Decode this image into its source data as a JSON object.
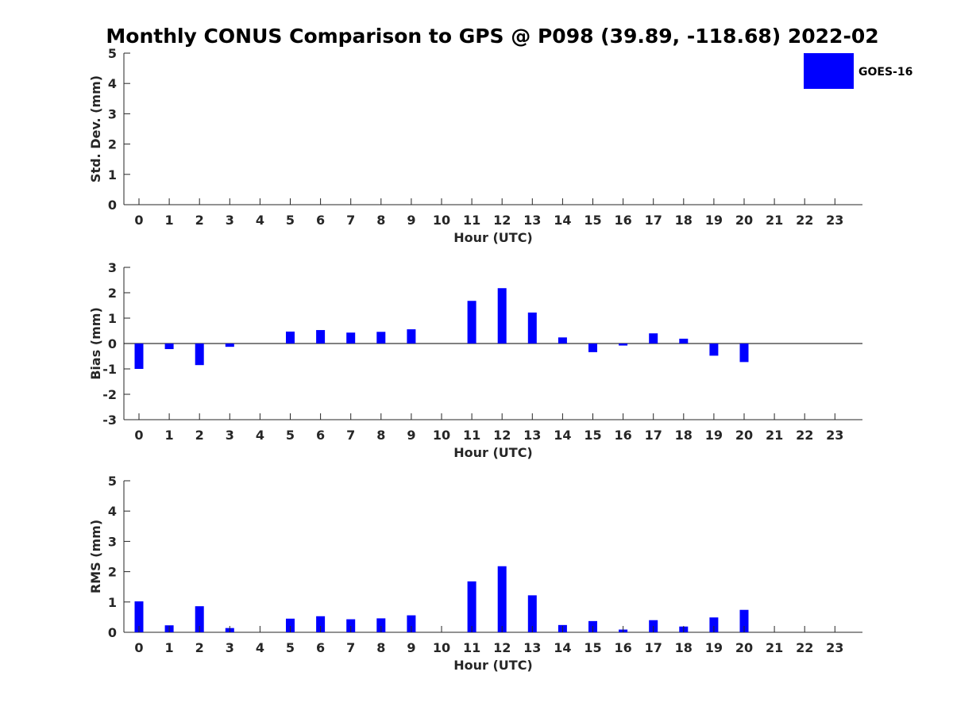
{
  "title": "Monthly CONUS Comparison to GPS @ P098 (39.89, -118.68) 2022-02",
  "colors": {
    "bar": "#0000ff",
    "axis": "#262626",
    "background": "#ffffff"
  },
  "legend": {
    "label": "GOES-16",
    "placement": "top-right"
  },
  "chart_data": [
    {
      "type": "bar",
      "name": "std",
      "categories": [
        "0",
        "1",
        "2",
        "3",
        "4",
        "5",
        "6",
        "7",
        "8",
        "9",
        "10",
        "11",
        "12",
        "13",
        "14",
        "15",
        "16",
        "17",
        "18",
        "19",
        "20",
        "21",
        "22",
        "23"
      ],
      "series": [
        {
          "name": "GOES-16",
          "values": [
            0,
            0,
            0,
            0,
            0,
            0,
            0,
            0,
            0,
            0,
            0,
            0,
            0,
            0,
            0,
            0,
            0,
            0,
            0,
            0,
            0,
            0,
            0,
            0
          ]
        }
      ],
      "xlabel": "Hour (UTC)",
      "ylabel": "Std. Dev. (mm)",
      "ylim": [
        0,
        5
      ],
      "yticks": [
        "0",
        "1",
        "2",
        "3",
        "4",
        "5"
      ],
      "zero_line": false
    },
    {
      "type": "bar",
      "name": "bias",
      "categories": [
        "0",
        "1",
        "2",
        "3",
        "4",
        "5",
        "6",
        "7",
        "8",
        "9",
        "10",
        "11",
        "12",
        "13",
        "14",
        "15",
        "16",
        "17",
        "18",
        "19",
        "20",
        "21",
        "22",
        "23"
      ],
      "series": [
        {
          "name": "GOES-16",
          "values": [
            -1.0,
            -0.22,
            -0.85,
            -0.13,
            0,
            0.47,
            0.53,
            0.43,
            0.46,
            0.56,
            0,
            1.68,
            2.18,
            1.22,
            0.24,
            -0.34,
            -0.08,
            0.4,
            0.19,
            -0.48,
            -0.73,
            0,
            0,
            0
          ]
        }
      ],
      "xlabel": "Hour (UTC)",
      "ylabel": "Bias (mm)",
      "ylim": [
        -3,
        3
      ],
      "yticks": [
        "-3",
        "-2",
        "-1",
        "0",
        "1",
        "2",
        "3"
      ],
      "zero_line": true
    },
    {
      "type": "bar",
      "name": "rms",
      "categories": [
        "0",
        "1",
        "2",
        "3",
        "4",
        "5",
        "6",
        "7",
        "8",
        "9",
        "10",
        "11",
        "12",
        "13",
        "14",
        "15",
        "16",
        "17",
        "18",
        "19",
        "20",
        "21",
        "22",
        "23"
      ],
      "series": [
        {
          "name": "GOES-16",
          "values": [
            1.02,
            0.23,
            0.86,
            0.14,
            0,
            0.45,
            0.53,
            0.43,
            0.46,
            0.56,
            0,
            1.68,
            2.18,
            1.22,
            0.24,
            0.37,
            0.09,
            0.4,
            0.19,
            0.49,
            0.74,
            0,
            0,
            0
          ]
        }
      ],
      "xlabel": "Hour (UTC)",
      "ylabel": "RMS (mm)",
      "ylim": [
        0,
        5
      ],
      "yticks": [
        "0",
        "1",
        "2",
        "3",
        "4",
        "5"
      ],
      "zero_line": false
    }
  ]
}
